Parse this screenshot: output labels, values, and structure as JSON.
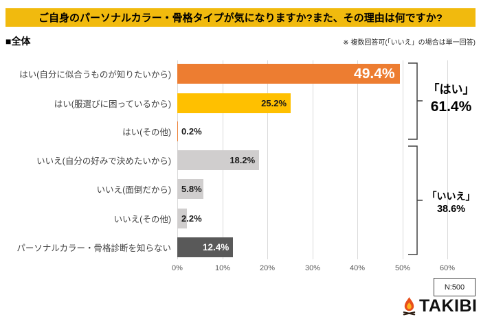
{
  "title": "ご自身のパーソナルカラー・骨格タイプが気になりますか?また、その理由は何ですか?",
  "section_label": "■全体",
  "note": "※ 複数回答可(「いいえ」の場合は単一回答)",
  "chart_data": {
    "type": "bar",
    "orientation": "horizontal",
    "title": "ご自身のパーソナルカラー・骨格タイプが気になりますか?また、その理由は何ですか?",
    "categories": [
      "はい(自分に似合うものが知りたいから)",
      "はい(服選びに困っているから)",
      "はい(その他)",
      "いいえ(自分の好みで決めたいから)",
      "いいえ(面倒だから)",
      "いいえ(その他)",
      "パーソナルカラー・骨格診断を知らない"
    ],
    "values": [
      49.4,
      25.2,
      0.2,
      18.2,
      5.8,
      2.2,
      12.4
    ],
    "value_labels": [
      "49.4%",
      "25.2%",
      "0.2%",
      "18.2%",
      "5.8%",
      "2.2%",
      "12.4%"
    ],
    "bar_colors": [
      "#ED7D31",
      "#FFC000",
      "#ED7D31",
      "#D0CECE",
      "#D0CECE",
      "#D0CECE",
      "#595959"
    ],
    "x_ticks": [
      "0%",
      "10%",
      "20%",
      "30%",
      "40%",
      "50%",
      "60%"
    ],
    "xlim": [
      0,
      60
    ],
    "grid": true,
    "groups": [
      {
        "label": "「はい」",
        "value": "61.4%",
        "rows": [
          0,
          1,
          2
        ]
      },
      {
        "label": "「いいえ」",
        "value": "38.6%",
        "rows": [
          3,
          4,
          5,
          6
        ]
      }
    ]
  },
  "footer": {
    "sample_size": "N:500",
    "logo_text": "TAKIBI",
    "logo_icon": "campfire-icon"
  },
  "colors": {
    "title_bg": "#F1BA0E",
    "orange": "#ED7D31",
    "gold": "#FFC000",
    "light_gray": "#D0CECE",
    "dark_gray": "#595959",
    "grid": "#D9D9D9",
    "bracket": "#404040"
  }
}
